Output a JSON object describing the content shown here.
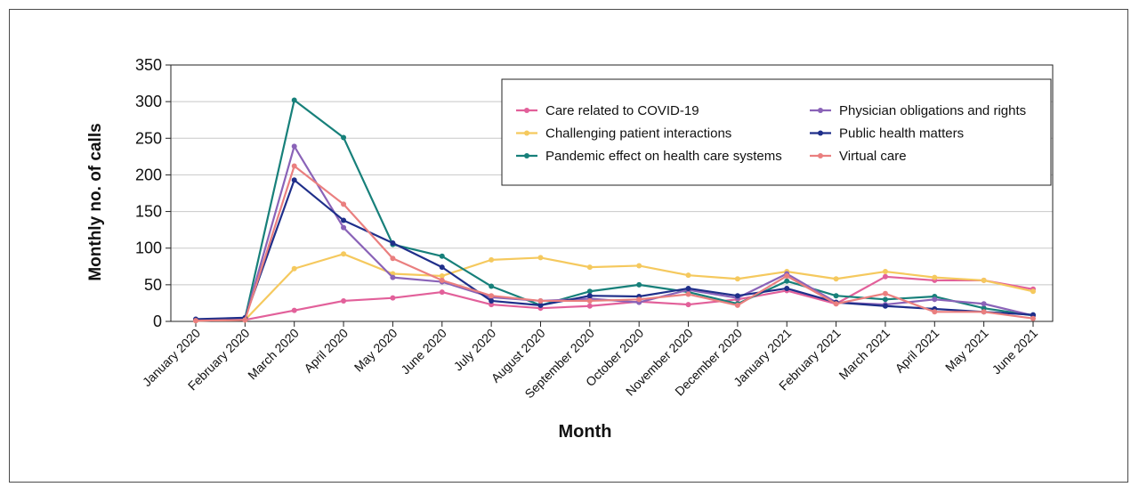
{
  "chart_data": {
    "type": "line",
    "title": "",
    "xlabel": "Month",
    "ylabel": "Monthly no. of calls",
    "ylim": [
      0,
      350
    ],
    "yticks": [
      0,
      50,
      100,
      150,
      200,
      250,
      300,
      350
    ],
    "grid": "horizontal",
    "legend_position": "top-right",
    "categories": [
      "January 2020",
      "February 2020",
      "March 2020",
      "April 2020",
      "May 2020",
      "June 2020",
      "July 2020",
      "August 2020",
      "September 2020",
      "October 2020",
      "November 2020",
      "December 2020",
      "January 2021",
      "February 2021",
      "March 2021",
      "April 2021",
      "May 2021",
      "June 2021"
    ],
    "series": [
      {
        "name": "Care related to COVID-19",
        "color": "#e2609a",
        "values": [
          1,
          2,
          15,
          28,
          32,
          40,
          23,
          18,
          21,
          27,
          23,
          30,
          42,
          24,
          61,
          56,
          56,
          44
        ]
      },
      {
        "name": "Challenging patient interactions",
        "color": "#f5c95e",
        "values": [
          1,
          2,
          72,
          92,
          65,
          62,
          84,
          87,
          74,
          76,
          63,
          58,
          68,
          58,
          68,
          60,
          56,
          41
        ]
      },
      {
        "name": "Pandemic effect on health care systems",
        "color": "#17807a",
        "values": [
          2,
          4,
          302,
          251,
          105,
          89,
          48,
          22,
          41,
          50,
          40,
          24,
          55,
          35,
          30,
          34,
          18,
          8
        ]
      },
      {
        "name": "Physician obligations and rights",
        "color": "#8a63b8",
        "values": [
          2,
          3,
          239,
          128,
          60,
          54,
          33,
          28,
          31,
          26,
          43,
          32,
          65,
          26,
          23,
          30,
          24,
          8
        ]
      },
      {
        "name": "Public health matters",
        "color": "#1f2f8a",
        "values": [
          3,
          5,
          193,
          138,
          107,
          74,
          28,
          22,
          35,
          34,
          45,
          35,
          45,
          26,
          21,
          17,
          13,
          9
        ]
      },
      {
        "name": "Virtual care",
        "color": "#ea7f7f",
        "values": [
          1,
          2,
          212,
          160,
          86,
          56,
          35,
          28,
          28,
          30,
          37,
          22,
          62,
          24,
          38,
          13,
          13,
          4
        ]
      }
    ]
  }
}
